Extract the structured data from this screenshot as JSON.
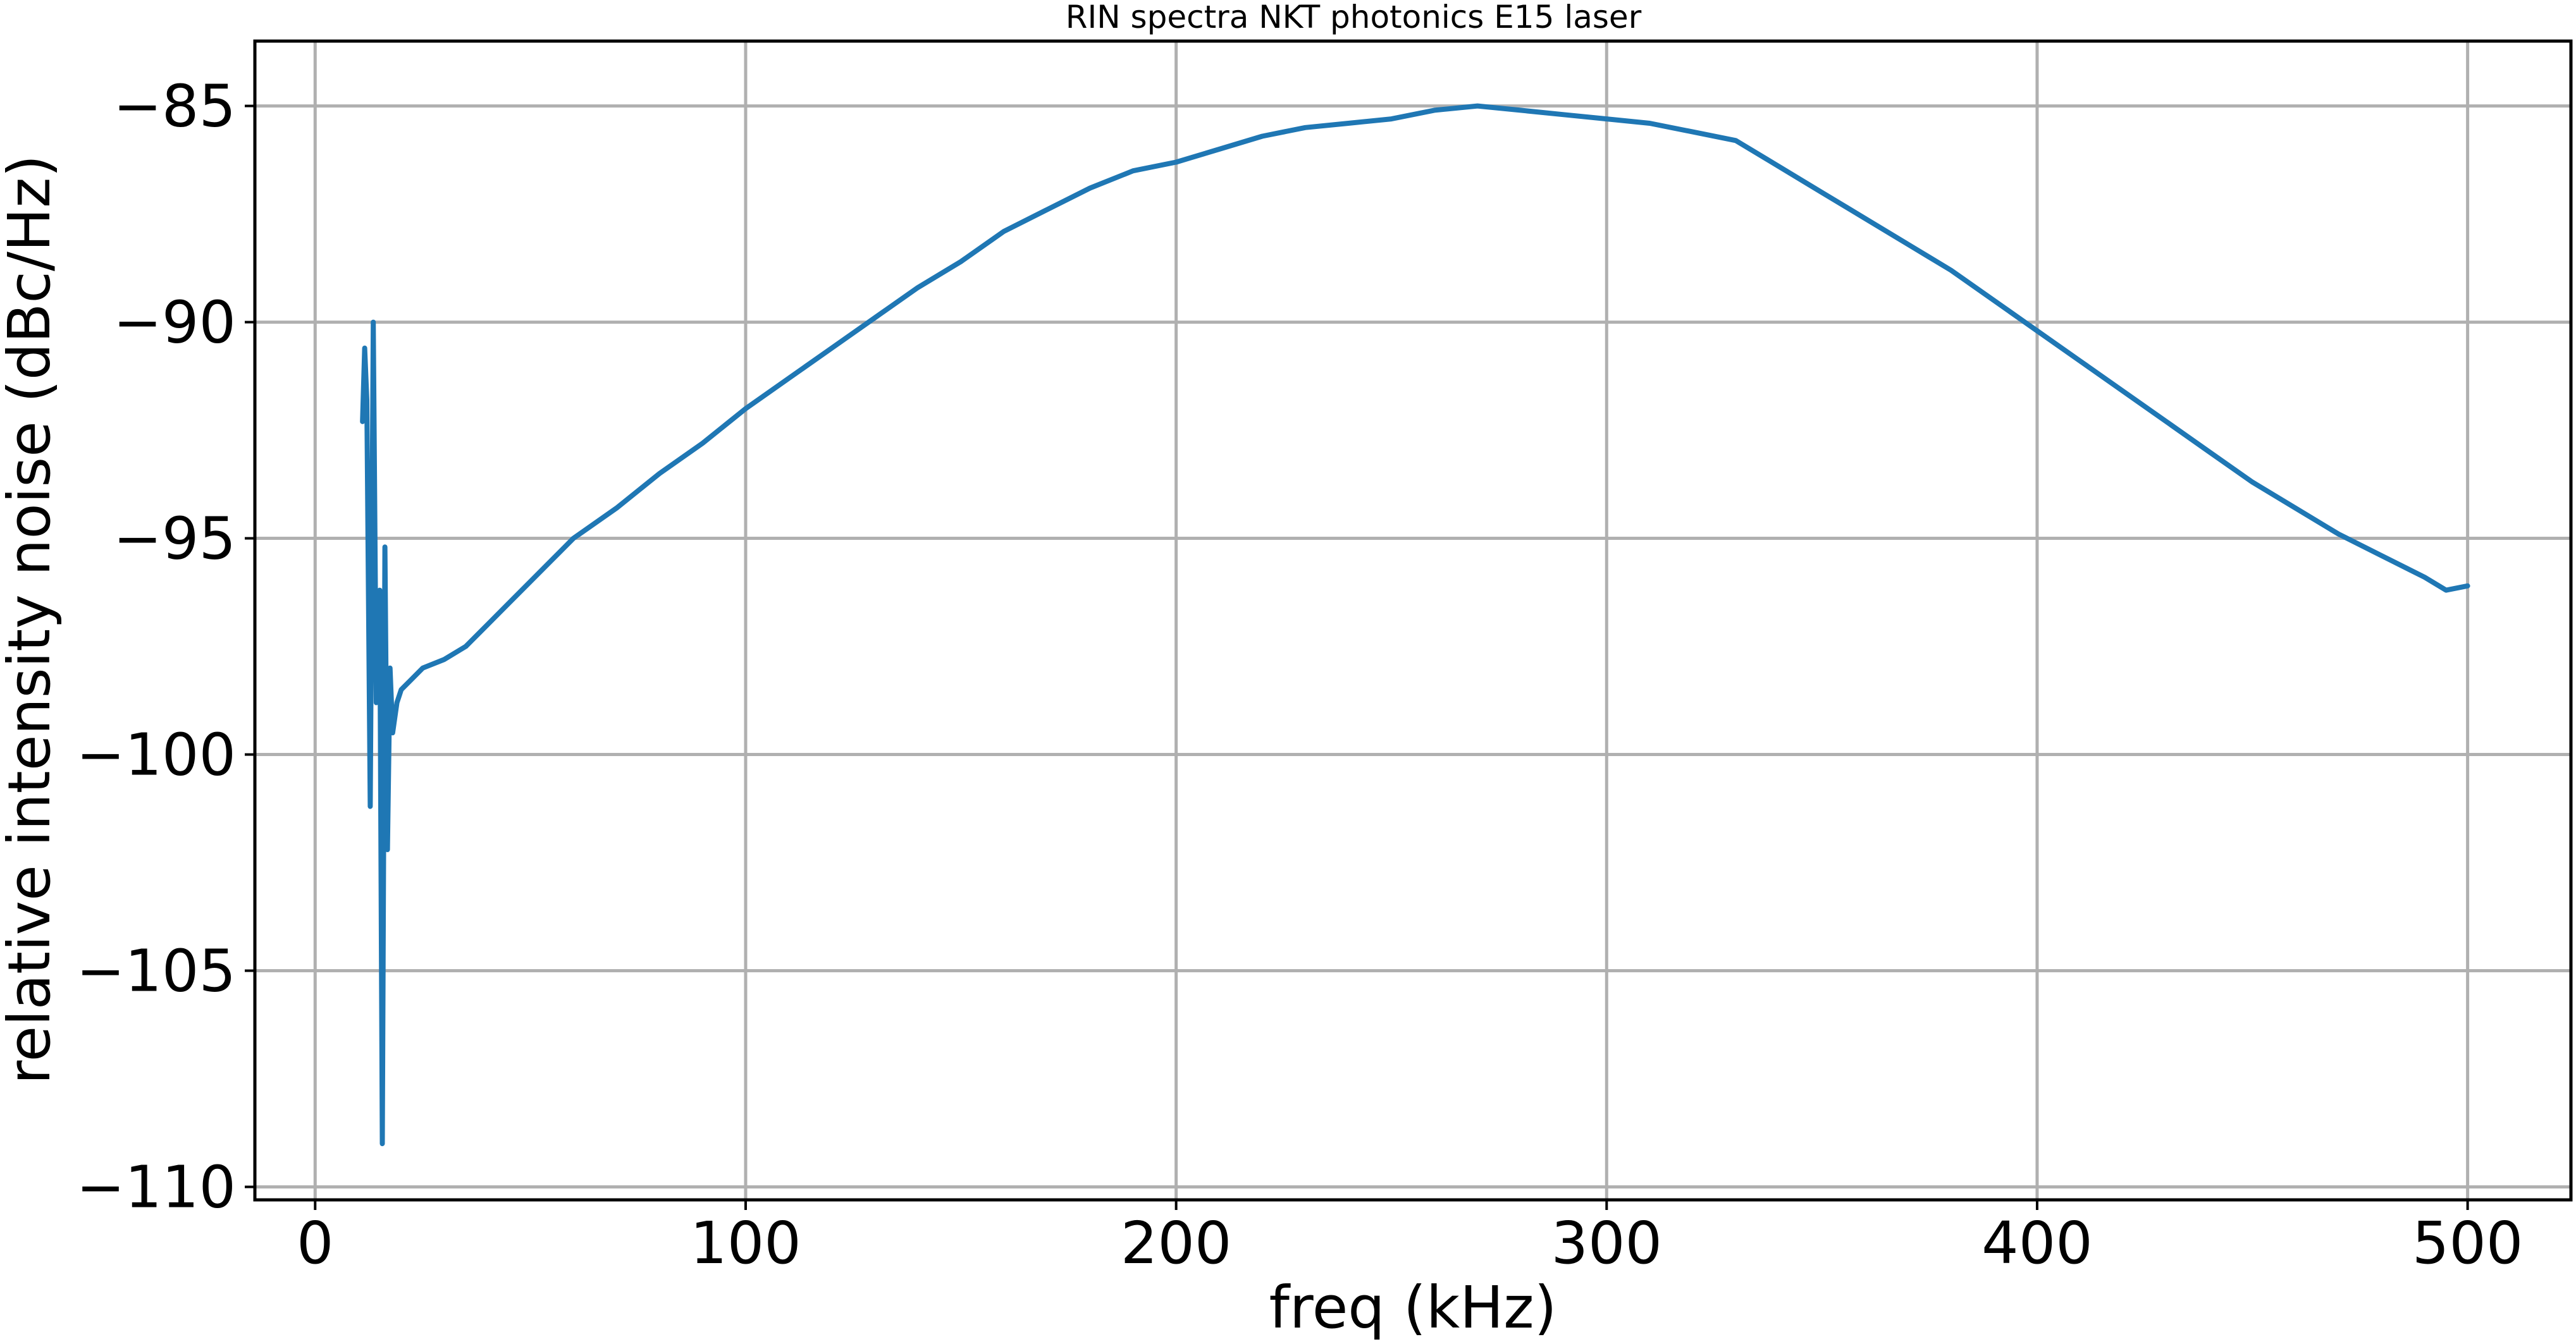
{
  "chart_data": {
    "type": "line",
    "title": "RIN spectra NKT photonics E15 laser",
    "xlabel": "freq (kHz)",
    "ylabel": "relative intensity noise (dBc/Hz)",
    "xlim": [
      -14,
      524
    ],
    "ylim": [
      -110.3,
      -83.5
    ],
    "xticks": [
      0,
      100,
      200,
      300,
      400,
      500
    ],
    "yticks": [
      -110,
      -105,
      -100,
      -95,
      -90,
      -85
    ],
    "xtick_labels": [
      "0",
      "100",
      "200",
      "300",
      "400",
      "500"
    ],
    "ytick_labels": [
      "−110",
      "−105",
      "−100",
      "−95",
      "−90",
      "−85"
    ],
    "grid": true,
    "series": [
      {
        "color": "#1f77b4",
        "x": [
          11,
          11.5,
          12,
          12.8,
          13.5,
          14.2,
          15,
          15.6,
          16.2,
          16.8,
          17.4,
          18,
          19,
          20,
          22,
          25,
          30,
          35,
          40,
          45,
          50,
          60,
          70,
          80,
          90,
          100,
          110,
          120,
          130,
          140,
          150,
          160,
          170,
          180,
          190,
          200,
          210,
          220,
          230,
          240,
          250,
          260,
          270,
          280,
          290,
          300,
          310,
          320,
          330,
          340,
          350,
          360,
          370,
          380,
          390,
          400,
          410,
          420,
          430,
          440,
          450,
          460,
          470,
          480,
          490,
          495,
          500
        ],
        "y": [
          -92.3,
          -90.6,
          -91.8,
          -101.2,
          -90,
          -98.8,
          -96.2,
          -109,
          -95.2,
          -102.2,
          -98,
          -99.5,
          -98.8,
          -98.5,
          -98.3,
          -98,
          -97.8,
          -97.5,
          -97,
          -96.5,
          -96,
          -95,
          -94.3,
          -93.5,
          -92.8,
          -92,
          -91.3,
          -90.6,
          -89.9,
          -89.2,
          -88.6,
          -87.9,
          -87.4,
          -86.9,
          -86.5,
          -86.3,
          -86,
          -85.7,
          -85.5,
          -85.4,
          -85.3,
          -85.1,
          -85,
          -85.1,
          -85.2,
          -85.3,
          -85.4,
          -85.6,
          -85.8,
          -86.4,
          -87,
          -87.6,
          -88.2,
          -88.8,
          -89.5,
          -90.2,
          -90.9,
          -91.6,
          -92.3,
          -93,
          -93.7,
          -94.3,
          -94.9,
          -95.4,
          -95.9,
          -96.2,
          -96.1
        ]
      }
    ]
  }
}
